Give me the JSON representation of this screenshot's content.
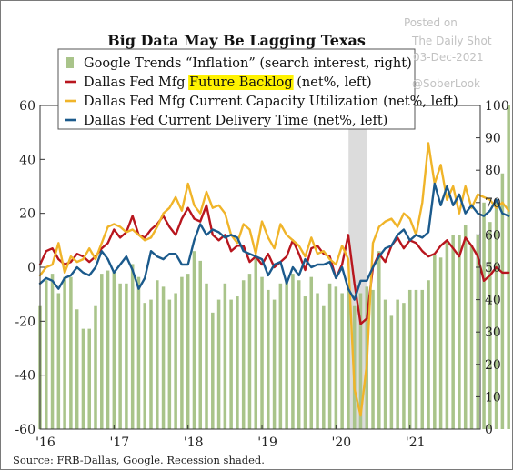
{
  "chart_data": {
    "type": "bar+line",
    "title": "Big Data May Be Lagging Texas",
    "source": "Source: FRB-Dallas, Google. Recession shaded.",
    "watermark": [
      "Posted on",
      "The Daily Shot",
      "03-Dec-2021",
      "@SoberLook"
    ],
    "x_ticks": [
      "'16",
      "'17",
      "'18",
      "'19",
      "'20",
      "'21"
    ],
    "x_tick_positions": [
      2016.0,
      2017.0,
      2018.0,
      2019.0,
      2020.0,
      2021.0
    ],
    "xlim": [
      2016.0,
      2021.95
    ],
    "left_axis": {
      "ylim": [
        -60,
        60
      ],
      "ticks": [
        60,
        40,
        20,
        0,
        -20,
        -40,
        -60
      ]
    },
    "right_axis": {
      "ylim": [
        0,
        100
      ],
      "ticks": [
        100,
        90,
        80,
        70,
        60,
        50,
        40,
        30,
        20,
        10,
        0
      ]
    },
    "recession": {
      "start": 2020.17,
      "end": 2020.42
    },
    "colors": {
      "bars": "#a9c48a",
      "backlog": "#b8161e",
      "capacity": "#f0b429",
      "delivery": "#1b5a8c",
      "recession": "#dcdcdc",
      "highlight": "#fff200"
    },
    "legend": [
      {
        "key": "bars",
        "text": "Google Trends “Inflation” (search interest, right)",
        "pre": "",
        "hl": "",
        "post": ""
      },
      {
        "key": "backlog",
        "text": "",
        "pre": "Dallas Fed Mfg ",
        "hl": "Future Backlog",
        "post": " (net%, left)"
      },
      {
        "key": "capacity",
        "text": "Dallas Fed Mfg Current Capacity Utilization (net%, left)",
        "pre": "",
        "hl": "",
        "post": ""
      },
      {
        "key": "delivery",
        "text": "Dallas Fed Current Delivery Time (net%, left)",
        "pre": "",
        "hl": "",
        "post": ""
      }
    ],
    "series": [
      {
        "name": "Google Trends “Inflation” (search interest, right)",
        "axis": "right",
        "x0": 2016.0,
        "step": 0.08333,
        "values": [
          38,
          46,
          48,
          42,
          47,
          47,
          37,
          31,
          31,
          38,
          48,
          49,
          49,
          45,
          45,
          51,
          47,
          39,
          40,
          46,
          44,
          40,
          42,
          47,
          48,
          55,
          52,
          45,
          36,
          40,
          45,
          40,
          41,
          46,
          48,
          53,
          47,
          43,
          40,
          45,
          46,
          48,
          46,
          41,
          47,
          42,
          38,
          45,
          44,
          42,
          44,
          38,
          42,
          44,
          43,
          55,
          40,
          35,
          40,
          39,
          43,
          43,
          43,
          46,
          54,
          53,
          58,
          60,
          60,
          63,
          57,
          60,
          70,
          64,
          70,
          79,
          100
        ]
      },
      {
        "name": "Dallas Fed Mfg Future Backlog (net%, left)",
        "axis": "left",
        "x0": 2016.0,
        "step": 0.08333,
        "values": [
          1,
          6,
          7,
          3,
          1,
          2,
          5,
          4,
          2,
          4,
          7,
          9,
          14,
          11,
          13,
          19,
          12,
          11,
          14,
          16,
          19,
          15,
          12,
          18,
          22,
          18,
          17,
          23,
          12,
          10,
          12,
          6,
          8,
          8,
          2,
          4,
          1,
          5,
          0,
          2,
          4,
          10,
          5,
          -1,
          7,
          8,
          5,
          4,
          -4,
          1,
          12,
          -6,
          -21,
          -19,
          0,
          5,
          2,
          8,
          11,
          7,
          10,
          9,
          6,
          4,
          5,
          8,
          10,
          7,
          4,
          11,
          8,
          4,
          -5,
          -3,
          0,
          -2,
          -2
        ]
      },
      {
        "name": "Dallas Fed Mfg Current Capacity Utilization (net%, left)",
        "axis": "left",
        "x0": 2016.0,
        "step": 0.08333,
        "values": [
          -3,
          0,
          1,
          9,
          -2,
          4,
          2,
          3,
          7,
          3,
          9,
          15,
          16,
          15,
          13,
          14,
          12,
          10,
          11,
          15,
          20,
          22,
          26,
          21,
          31,
          23,
          20,
          28,
          22,
          23,
          20,
          12,
          9,
          16,
          14,
          5,
          17,
          11,
          7,
          16,
          12,
          10,
          8,
          4,
          11,
          5,
          6,
          3,
          1,
          8,
          3,
          -45,
          -55,
          -36,
          9,
          15,
          17,
          18,
          15,
          20,
          18,
          12,
          24,
          46,
          31,
          38,
          25,
          30,
          20,
          30,
          22,
          27,
          26,
          25,
          22,
          24,
          21
        ]
      },
      {
        "name": "Dallas Fed Current Delivery Time (net%, left)",
        "axis": "left",
        "x0": 2016.0,
        "step": 0.08333,
        "values": [
          -6,
          -4,
          -5,
          -8,
          -4,
          -3,
          0,
          -2,
          -3,
          0,
          6,
          3,
          -2,
          1,
          4,
          -1,
          -8,
          -4,
          6,
          4,
          3,
          5,
          5,
          1,
          1,
          10,
          16,
          12,
          14,
          13,
          11,
          12,
          11,
          6,
          5,
          4,
          3,
          -3,
          1,
          2,
          -6,
          0,
          -3,
          3,
          0,
          1,
          1,
          2,
          -4,
          0,
          -8,
          -12,
          -5,
          -5,
          0,
          4,
          7,
          8,
          12,
          14,
          10,
          12,
          11,
          13,
          31,
          23,
          30,
          23,
          27,
          20,
          23,
          20,
          19,
          21,
          25,
          20,
          19
        ]
      }
    ]
  }
}
